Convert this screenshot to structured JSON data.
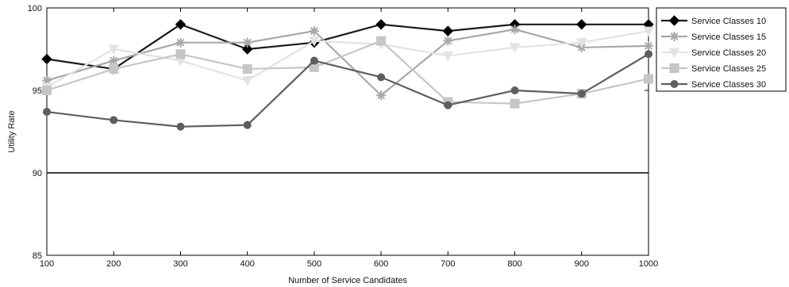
{
  "chart_data": {
    "type": "line",
    "title": "",
    "xlabel": "Number of Service Candidates",
    "ylabel": "Utility Rate",
    "x": [
      100,
      200,
      300,
      400,
      500,
      600,
      700,
      800,
      900,
      1000
    ],
    "xlim": [
      100,
      1000
    ],
    "ylim": [
      85,
      100
    ],
    "xticks": [
      100,
      200,
      300,
      400,
      500,
      600,
      700,
      800,
      900,
      1000
    ],
    "yticks": [
      85,
      90,
      95,
      100
    ],
    "grid": false,
    "legend_position": "outside-top-right",
    "reference_line": {
      "y": 90,
      "color": "#000000"
    },
    "series": [
      {
        "name": "Service Classes 10",
        "color": "#1a1a1a",
        "marker": "diamond",
        "values": [
          96.9,
          96.3,
          99.0,
          97.5,
          97.9,
          99.0,
          98.6,
          99.0,
          99.0,
          99.0
        ]
      },
      {
        "name": "Service Classes 15",
        "color": "#a8a8a8",
        "marker": "star",
        "values": [
          95.6,
          96.8,
          97.9,
          97.9,
          98.6,
          94.7,
          98.0,
          98.7,
          97.6,
          97.7
        ]
      },
      {
        "name": "Service Classes 20",
        "color": "#e3e3e3",
        "marker": "triangle-down",
        "values": [
          95.2,
          97.5,
          96.8,
          95.6,
          98.0,
          97.8,
          97.1,
          97.6,
          97.9,
          98.6
        ]
      },
      {
        "name": "Service Classes 25",
        "color": "#c6c6c6",
        "marker": "square",
        "values": [
          95.0,
          96.3,
          97.2,
          96.3,
          96.4,
          98.0,
          94.3,
          94.2,
          94.8,
          95.7
        ]
      },
      {
        "name": "Service Classes 30",
        "color": "#5e5e5e",
        "marker": "circle",
        "values": [
          93.7,
          93.2,
          92.8,
          92.9,
          96.8,
          95.8,
          94.1,
          95.0,
          94.8,
          97.2
        ]
      }
    ]
  }
}
